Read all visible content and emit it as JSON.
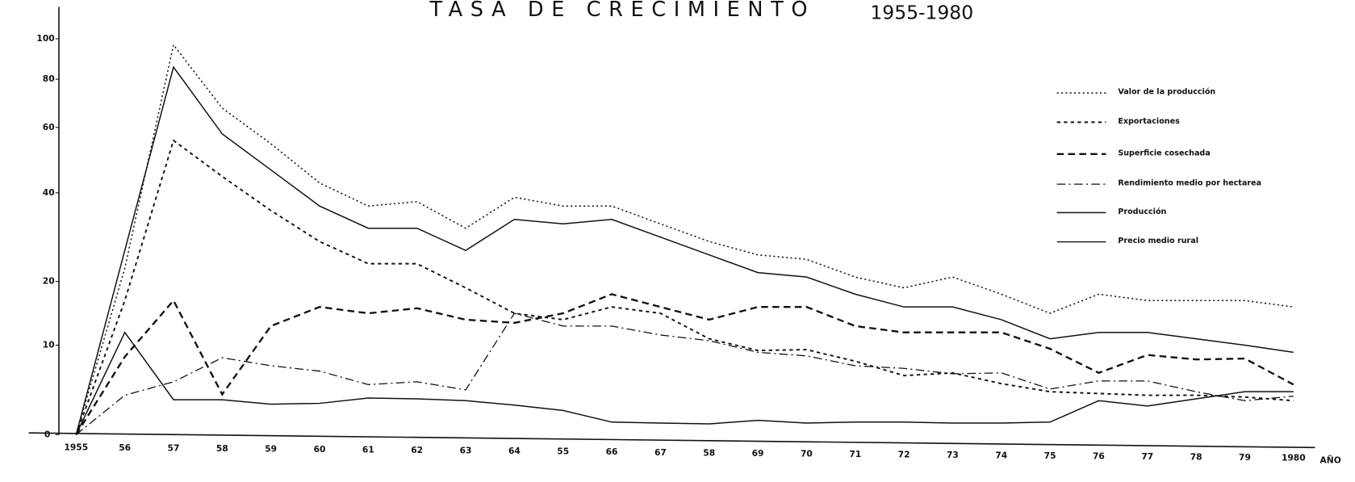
{
  "chart_data": {
    "type": "line",
    "title": "TASA DE CRECIMIENTO",
    "subtitle": "1955-1980",
    "x_label": "AÑO",
    "categories": [
      "1955",
      "56",
      "57",
      "58",
      "59",
      "60",
      "61",
      "62",
      "63",
      "64",
      "55",
      "66",
      "67",
      "58",
      "69",
      "70",
      "71",
      "72",
      "73",
      "74",
      "75",
      "76",
      "77",
      "78",
      "79",
      "1980"
    ],
    "ylim": [
      0,
      100
    ],
    "yticks": [
      0,
      10,
      20,
      40,
      60,
      80,
      100
    ],
    "grid": false,
    "legend": "right",
    "series": [
      {
        "name": "Valor de la producción",
        "color": "#111111",
        "dash": "dotted",
        "values": [
          0,
          23,
          97,
          68,
          55,
          43,
          37,
          38,
          32,
          39,
          37,
          37,
          33,
          29,
          26,
          25,
          21,
          19,
          21,
          18,
          15,
          18,
          17,
          17,
          17,
          16
        ]
      },
      {
        "name": "Exportaciones",
        "color": "#111111",
        "dash": "short-dash",
        "values": [
          0,
          17,
          56,
          45,
          36,
          29,
          24,
          24,
          19,
          15,
          14,
          16,
          15,
          11,
          9.4,
          9.5,
          8.2,
          6.6,
          6.9,
          5.7,
          4.8,
          4.6,
          4.4,
          4.4,
          4.2,
          3.8
        ]
      },
      {
        "name": "Superficie cosechada",
        "color": "#111111",
        "dash": "dash",
        "values": [
          0,
          8.7,
          17,
          4.5,
          13,
          16,
          15,
          15.8,
          14,
          13.5,
          15,
          18,
          16,
          14,
          16,
          16,
          13,
          12,
          12,
          12,
          9.6,
          6.9,
          8.9,
          8.4,
          8.5,
          5.6
        ]
      },
      {
        "name": "Rendimiento medio por hectarea",
        "color": "#111111",
        "dash": "dash-dot",
        "values": [
          0,
          4.4,
          5.9,
          8.6,
          7.7,
          7.1,
          5.6,
          5.9,
          5.0,
          15,
          13,
          13,
          11.6,
          10.7,
          9.2,
          8.8,
          7.7,
          7.4,
          6.8,
          6.9,
          5.1,
          6.0,
          6.0,
          4.8,
          3.8,
          4.3
        ]
      },
      {
        "name": "Producción",
        "color": "#111111",
        "dash": "solid",
        "values": [
          0,
          27,
          86,
          58,
          47,
          37,
          32,
          32,
          27,
          34,
          33,
          34,
          30,
          26,
          22,
          21,
          18,
          16,
          16,
          14,
          11,
          12,
          12,
          11,
          10,
          9.2
        ]
      },
      {
        "name": "Precio medio rural",
        "color": "#111111",
        "dash": "solid",
        "values": [
          0,
          12,
          3.9,
          3.9,
          3.4,
          3.5,
          4.1,
          4.0,
          3.8,
          3.3,
          2.7,
          1.4,
          1.3,
          1.2,
          1.6,
          1.3,
          1.4,
          1.4,
          1.3,
          1.3,
          1.4,
          3.8,
          3.2,
          4.0,
          4.8,
          4.8
        ]
      }
    ]
  }
}
